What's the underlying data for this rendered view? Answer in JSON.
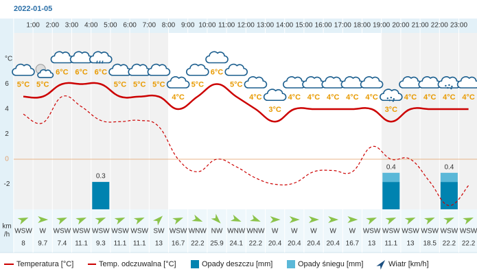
{
  "chart_data": {
    "type": "line",
    "title": "2022-01-05",
    "hour_labels": [
      "1:00",
      "2:00",
      "3:00",
      "4:00",
      "5:00",
      "6:00",
      "7:00",
      "8:00",
      "9:00",
      "10:00",
      "11:00",
      "12:00",
      "13:00",
      "14:00",
      "15:00",
      "16:00",
      "17:00",
      "18:00",
      "19:00",
      "20:00",
      "21:00",
      "22:00",
      "23:00"
    ],
    "y_axis_label": "°C",
    "ylim": [
      -4,
      10
    ],
    "yticks": [
      -2,
      0,
      2,
      4,
      6
    ],
    "series": [
      {
        "name": "Temperatura [°C]",
        "color": "#cc0000",
        "values": [
          5,
          5,
          6,
          6,
          6,
          5,
          5,
          5,
          4,
          5,
          6,
          5,
          4,
          3,
          4,
          4,
          4,
          4,
          4,
          3,
          4,
          4,
          4,
          4
        ],
        "value_labels": [
          "5°C",
          "5°C",
          "6°C",
          "6°C",
          "6°C",
          "5°C",
          "5°C",
          "5°C",
          "4°C",
          "5°C",
          "6°C",
          "5°C",
          "4°C",
          "3°C",
          "4°C",
          "4°C",
          "4°C",
          "4°C",
          "4°C",
          "3°C",
          "4°C",
          "4°C",
          "4°C",
          "4°C"
        ]
      },
      {
        "name": "Temp. odczuwalna [°C]",
        "color": "#cc0000",
        "values": [
          3.6,
          2.9,
          5,
          4.2,
          3.1,
          3,
          3.1,
          2.6,
          0,
          -1,
          0,
          -0.6,
          -1.5,
          -2,
          -1.9,
          -1,
          -0.9,
          -1,
          1,
          0,
          0,
          -1.8,
          -3.7,
          -2.1
        ]
      },
      {
        "name": "Opady deszczu [mm]",
        "color": "#0083b0",
        "values": [
          0,
          0,
          0,
          0,
          0.3,
          0,
          0,
          0,
          0,
          0,
          0,
          0,
          0,
          0,
          0,
          0,
          0,
          0,
          0,
          0.3,
          0,
          0,
          0.3,
          0
        ]
      },
      {
        "name": "Opady śniegu [mm]",
        "color": "#5bb8d8",
        "values": [
          0,
          0,
          0,
          0,
          0,
          0,
          0,
          0,
          0,
          0,
          0,
          0,
          0,
          0,
          0,
          0,
          0,
          0,
          0,
          0.1,
          0,
          0,
          0.1,
          0
        ]
      }
    ],
    "precip_totals": [
      null,
      null,
      null,
      null,
      0.3,
      null,
      null,
      null,
      null,
      null,
      null,
      null,
      null,
      null,
      null,
      null,
      null,
      null,
      null,
      0.4,
      null,
      null,
      0.4,
      null
    ],
    "wind": {
      "name": "Wiatr [km/h]",
      "unit_label": [
        "km",
        "/h"
      ],
      "color": "#8bc34a",
      "directions": [
        "WSW",
        "W",
        "WSW",
        "WSW",
        "WSW",
        "WSW",
        "WSW",
        "SW",
        "WSW",
        "WNW",
        "NW",
        "WNW",
        "WNW",
        "W",
        "W",
        "W",
        "W",
        "W",
        "WSW",
        "WSW",
        "WSW",
        "WSW",
        "WSW",
        "WSW"
      ],
      "speeds": [
        8,
        9.7,
        7.4,
        11.1,
        9.3,
        11.1,
        11.1,
        13,
        16.7,
        22.2,
        25.9,
        24.1,
        22.2,
        20.4,
        20.4,
        20.4,
        20.4,
        16.7,
        13,
        11.1,
        13,
        18.5,
        22.2,
        22.2
      ]
    }
  }
}
